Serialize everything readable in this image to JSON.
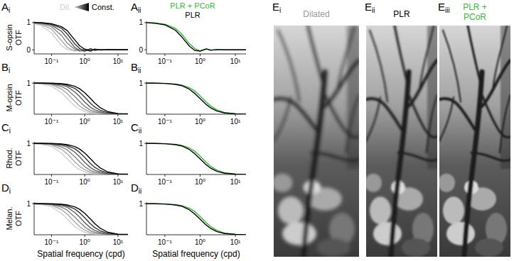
{
  "chart_data": [
    {
      "type": "line",
      "panel": "A",
      "panel_sub": "i",
      "ylabel": "S-opsin OTF",
      "log": "x",
      "legend": "top",
      "x": [
        0.03,
        0.05,
        0.1,
        0.2,
        0.3,
        0.5,
        0.7,
        1,
        1.5,
        2,
        3,
        5,
        10,
        20
      ],
      "xlim": [
        0.03,
        20
      ],
      "xticks": [
        {
          "value": 0.1,
          "label": "10⁻¹"
        },
        {
          "value": 1,
          "label": "10⁰"
        },
        {
          "value": 10,
          "label": "10¹"
        }
      ],
      "ylim": [
        -0.15,
        1.05
      ],
      "yticks": [
        0,
        1
      ],
      "series": [
        {
          "name": "Dil.",
          "color": "#d0d0d0",
          "values": [
            0.96,
            0.89,
            0.62,
            0.15,
            0.01,
            -0.04,
            0.02,
            -0.01,
            0,
            0,
            0,
            0,
            0,
            0
          ]
        },
        {
          "color": "#aaaaaa",
          "values": [
            0.98,
            0.93,
            0.76,
            0.34,
            0.09,
            -0.04,
            0.03,
            -0.02,
            0.01,
            0,
            0,
            0,
            0,
            0
          ]
        },
        {
          "color": "#848484",
          "values": [
            0.99,
            0.96,
            0.85,
            0.53,
            0.24,
            0.02,
            -0.05,
            0.03,
            -0.01,
            0.01,
            0,
            0,
            0,
            0
          ]
        },
        {
          "color": "#5e5e5e",
          "values": [
            1,
            0.98,
            0.91,
            0.68,
            0.42,
            0.09,
            -0.03,
            -0.05,
            0.03,
            -0.01,
            0.01,
            0,
            0,
            0
          ]
        },
        {
          "color": "#363636",
          "values": [
            1,
            0.99,
            0.94,
            0.79,
            0.58,
            0.22,
            0.05,
            -0.04,
            0.04,
            -0.02,
            0.01,
            0,
            0,
            0
          ]
        },
        {
          "name": "Const.",
          "color": "#000000",
          "values": [
            1,
            1,
            0.96,
            0.85,
            0.7,
            0.37,
            0.15,
            0.02,
            -0.05,
            0.03,
            -0.01,
            0.01,
            0,
            0
          ]
        }
      ]
    },
    {
      "type": "line",
      "panel": "A",
      "panel_sub": "ii",
      "log": "x",
      "legend": "top",
      "x": [
        0.03,
        0.05,
        0.1,
        0.2,
        0.3,
        0.5,
        0.7,
        1,
        1.5,
        2,
        3,
        5,
        10,
        20
      ],
      "xlim": [
        0.03,
        20
      ],
      "xticks": [
        {
          "value": 0.1,
          "label": "10⁻¹"
        },
        {
          "value": 1,
          "label": "10⁰"
        },
        {
          "value": 10,
          "label": "10¹"
        }
      ],
      "ylim": [
        -0.15,
        1.05
      ],
      "yticks": [
        0,
        1
      ],
      "series": [
        {
          "name": "PLR + PCoR",
          "color": "#35b835",
          "values": [
            1,
            0.99,
            0.94,
            0.79,
            0.58,
            0.22,
            0.05,
            -0.04,
            0.04,
            -0.02,
            0.01,
            0,
            0,
            0
          ]
        },
        {
          "name": "PLR",
          "color": "#000000",
          "values": [
            1,
            0.98,
            0.92,
            0.72,
            0.48,
            0.13,
            -0.02,
            -0.05,
            0.03,
            -0.01,
            0.01,
            0,
            0,
            0
          ]
        }
      ]
    },
    {
      "type": "line",
      "panel": "B",
      "panel_sub": "i",
      "ylabel": "M-opsin OTF",
      "log": "x",
      "x": [
        0.03,
        0.05,
        0.1,
        0.2,
        0.3,
        0.5,
        0.7,
        1,
        1.5,
        2,
        3,
        5,
        10,
        20
      ],
      "xlim": [
        0.03,
        20
      ],
      "xticks": [
        {
          "value": 0.1,
          "label": "10⁻¹"
        },
        {
          "value": 1,
          "label": "10⁰"
        },
        {
          "value": 10,
          "label": "10¹"
        }
      ],
      "ylim": [
        0,
        1.05
      ],
      "yticks": [
        1
      ],
      "series": [
        {
          "color": "#d0d0d0",
          "values": [
            0.99,
            0.97,
            0.9,
            0.69,
            0.5,
            0.26,
            0.16,
            0.08,
            0.04,
            0.02,
            0.01,
            0,
            0,
            0
          ]
        },
        {
          "color": "#aaaaaa",
          "values": [
            0.99,
            0.99,
            0.95,
            0.81,
            0.66,
            0.41,
            0.26,
            0.15,
            0.07,
            0.04,
            0.02,
            0.01,
            0,
            0
          ]
        },
        {
          "color": "#848484",
          "values": [
            1,
            0.99,
            0.97,
            0.89,
            0.79,
            0.57,
            0.41,
            0.25,
            0.13,
            0.08,
            0.04,
            0.01,
            0,
            0
          ]
        },
        {
          "color": "#5e5e5e",
          "values": [
            1,
            1,
            0.98,
            0.94,
            0.88,
            0.72,
            0.57,
            0.39,
            0.22,
            0.14,
            0.07,
            0.02,
            0.01,
            0
          ]
        },
        {
          "color": "#363636",
          "values": [
            1,
            1,
            0.99,
            0.97,
            0.93,
            0.83,
            0.71,
            0.55,
            0.35,
            0.23,
            0.12,
            0.05,
            0.01,
            0
          ]
        },
        {
          "color": "#000000",
          "values": [
            1,
            1,
            1,
            0.98,
            0.96,
            0.9,
            0.82,
            0.69,
            0.5,
            0.36,
            0.2,
            0.08,
            0.02,
            0.01
          ]
        }
      ]
    },
    {
      "type": "line",
      "panel": "B",
      "panel_sub": "ii",
      "log": "x",
      "x": [
        0.03,
        0.05,
        0.1,
        0.2,
        0.3,
        0.5,
        0.7,
        1,
        1.5,
        2,
        3,
        5,
        10,
        20
      ],
      "xlim": [
        0.03,
        20
      ],
      "xticks": [
        {
          "value": 0.1,
          "label": "10⁻¹"
        },
        {
          "value": 1,
          "label": "10⁰"
        },
        {
          "value": 10,
          "label": "10¹"
        }
      ],
      "ylim": [
        0,
        1.05
      ],
      "yticks": [
        1
      ],
      "series": [
        {
          "color": "#35b835",
          "values": [
            1,
            1,
            0.99,
            0.97,
            0.94,
            0.85,
            0.75,
            0.59,
            0.39,
            0.26,
            0.14,
            0.05,
            0.01,
            0
          ]
        },
        {
          "color": "#000000",
          "values": [
            1,
            1,
            0.99,
            0.96,
            0.92,
            0.8,
            0.67,
            0.5,
            0.31,
            0.2,
            0.1,
            0.04,
            0.01,
            0
          ]
        }
      ]
    },
    {
      "type": "line",
      "panel": "C",
      "panel_sub": "i",
      "ylabel": "Rhod. OTF",
      "log": "x",
      "x": [
        0.03,
        0.05,
        0.1,
        0.2,
        0.3,
        0.5,
        0.7,
        1,
        1.5,
        2,
        3,
        5,
        10,
        20
      ],
      "xlim": [
        0.03,
        20
      ],
      "xticks": [
        {
          "value": 0.1,
          "label": "10⁻¹"
        },
        {
          "value": 1,
          "label": "10⁰"
        },
        {
          "value": 10,
          "label": "10¹"
        }
      ],
      "ylim": [
        0,
        1.05
      ],
      "yticks": [
        1
      ],
      "series": [
        {
          "color": "#d0d0d0",
          "values": [
            0.99,
            0.97,
            0.9,
            0.69,
            0.5,
            0.26,
            0.16,
            0.08,
            0.04,
            0.02,
            0.01,
            0,
            0,
            0
          ]
        },
        {
          "color": "#aaaaaa",
          "values": [
            0.99,
            0.99,
            0.95,
            0.81,
            0.66,
            0.41,
            0.26,
            0.15,
            0.07,
            0.04,
            0.02,
            0.01,
            0,
            0
          ]
        },
        {
          "color": "#848484",
          "values": [
            1,
            0.99,
            0.97,
            0.89,
            0.79,
            0.57,
            0.41,
            0.25,
            0.13,
            0.08,
            0.04,
            0.01,
            0,
            0
          ]
        },
        {
          "color": "#5e5e5e",
          "values": [
            1,
            1,
            0.98,
            0.94,
            0.88,
            0.72,
            0.57,
            0.39,
            0.22,
            0.14,
            0.07,
            0.02,
            0.01,
            0
          ]
        },
        {
          "color": "#363636",
          "values": [
            1,
            1,
            0.99,
            0.97,
            0.93,
            0.83,
            0.71,
            0.55,
            0.35,
            0.23,
            0.12,
            0.05,
            0.01,
            0
          ]
        },
        {
          "color": "#000000",
          "values": [
            1,
            1,
            1,
            0.98,
            0.96,
            0.9,
            0.82,
            0.69,
            0.5,
            0.36,
            0.2,
            0.08,
            0.02,
            0.01
          ]
        }
      ]
    },
    {
      "type": "line",
      "panel": "C",
      "panel_sub": "ii",
      "log": "x",
      "x": [
        0.03,
        0.05,
        0.1,
        0.2,
        0.3,
        0.5,
        0.7,
        1,
        1.5,
        2,
        3,
        5,
        10,
        20
      ],
      "xlim": [
        0.03,
        20
      ],
      "xticks": [
        {
          "value": 0.1,
          "label": "10⁻¹"
        },
        {
          "value": 1,
          "label": "10⁰"
        },
        {
          "value": 10,
          "label": "10¹"
        }
      ],
      "ylim": [
        0,
        1.05
      ],
      "yticks": [
        1
      ],
      "series": [
        {
          "color": "#35b835",
          "values": [
            1,
            1,
            0.99,
            0.97,
            0.94,
            0.85,
            0.75,
            0.59,
            0.39,
            0.26,
            0.14,
            0.05,
            0.01,
            0
          ]
        },
        {
          "color": "#000000",
          "values": [
            1,
            1,
            0.99,
            0.96,
            0.92,
            0.8,
            0.67,
            0.5,
            0.31,
            0.2,
            0.1,
            0.04,
            0.01,
            0
          ]
        }
      ]
    },
    {
      "type": "line",
      "panel": "D",
      "panel_sub": "i",
      "ylabel": "Melan. OTF",
      "xlabel": "Spatial frequency (cpd)",
      "log": "x",
      "x": [
        0.03,
        0.05,
        0.1,
        0.2,
        0.3,
        0.5,
        0.7,
        1,
        1.5,
        2,
        3,
        5,
        10,
        20
      ],
      "xlim": [
        0.03,
        20
      ],
      "xticks": [
        {
          "value": 0.1,
          "label": "10⁻¹"
        },
        {
          "value": 1,
          "label": "10⁰"
        },
        {
          "value": 10,
          "label": "10¹"
        }
      ],
      "ylim": [
        0,
        1.05
      ],
      "yticks": [
        1
      ],
      "series": [
        {
          "color": "#d0d0d0",
          "values": [
            0.99,
            0.97,
            0.9,
            0.69,
            0.5,
            0.26,
            0.16,
            0.08,
            0.04,
            0.02,
            0.01,
            0,
            0,
            0
          ]
        },
        {
          "color": "#aaaaaa",
          "values": [
            0.99,
            0.99,
            0.95,
            0.81,
            0.66,
            0.41,
            0.26,
            0.15,
            0.07,
            0.04,
            0.02,
            0.01,
            0,
            0
          ]
        },
        {
          "color": "#848484",
          "values": [
            1,
            0.99,
            0.97,
            0.89,
            0.79,
            0.57,
            0.41,
            0.25,
            0.13,
            0.08,
            0.04,
            0.01,
            0,
            0
          ]
        },
        {
          "color": "#5e5e5e",
          "values": [
            1,
            1,
            0.98,
            0.94,
            0.88,
            0.72,
            0.57,
            0.39,
            0.22,
            0.14,
            0.07,
            0.02,
            0.01,
            0
          ]
        },
        {
          "color": "#363636",
          "values": [
            1,
            1,
            0.99,
            0.97,
            0.93,
            0.83,
            0.71,
            0.55,
            0.35,
            0.23,
            0.12,
            0.05,
            0.01,
            0
          ]
        },
        {
          "color": "#000000",
          "values": [
            1,
            1,
            1,
            0.98,
            0.96,
            0.9,
            0.82,
            0.69,
            0.5,
            0.36,
            0.2,
            0.08,
            0.02,
            0.01
          ]
        }
      ]
    },
    {
      "type": "line",
      "panel": "D",
      "panel_sub": "ii",
      "xlabel": "Spatial frequency (cpd)",
      "log": "x",
      "x": [
        0.03,
        0.05,
        0.1,
        0.2,
        0.3,
        0.5,
        0.7,
        1,
        1.5,
        2,
        3,
        5,
        10,
        20
      ],
      "xlim": [
        0.03,
        20
      ],
      "xticks": [
        {
          "value": 0.1,
          "label": "10⁻¹"
        },
        {
          "value": 1,
          "label": "10⁰"
        },
        {
          "value": 10,
          "label": "10¹"
        }
      ],
      "ylim": [
        0,
        1.05
      ],
      "yticks": [
        1
      ],
      "series": [
        {
          "color": "#35b835",
          "values": [
            1,
            1,
            0.99,
            0.97,
            0.94,
            0.85,
            0.75,
            0.59,
            0.39,
            0.26,
            0.14,
            0.05,
            0.01,
            0
          ]
        },
        {
          "color": "#000000",
          "values": [
            1,
            1,
            0.99,
            0.96,
            0.92,
            0.8,
            0.67,
            0.5,
            0.31,
            0.2,
            0.1,
            0.04,
            0.01,
            0
          ]
        }
      ]
    }
  ],
  "images": [
    {
      "panel": "E",
      "panel_sub": "i",
      "label": "Dilated",
      "color": "#999999"
    },
    {
      "panel": "E",
      "panel_sub": "ii",
      "label": "PLR",
      "color": "#000000"
    },
    {
      "panel": "E",
      "panel_sub": "iii",
      "label": "PLR + PCoR",
      "color": "#35b835"
    }
  ]
}
